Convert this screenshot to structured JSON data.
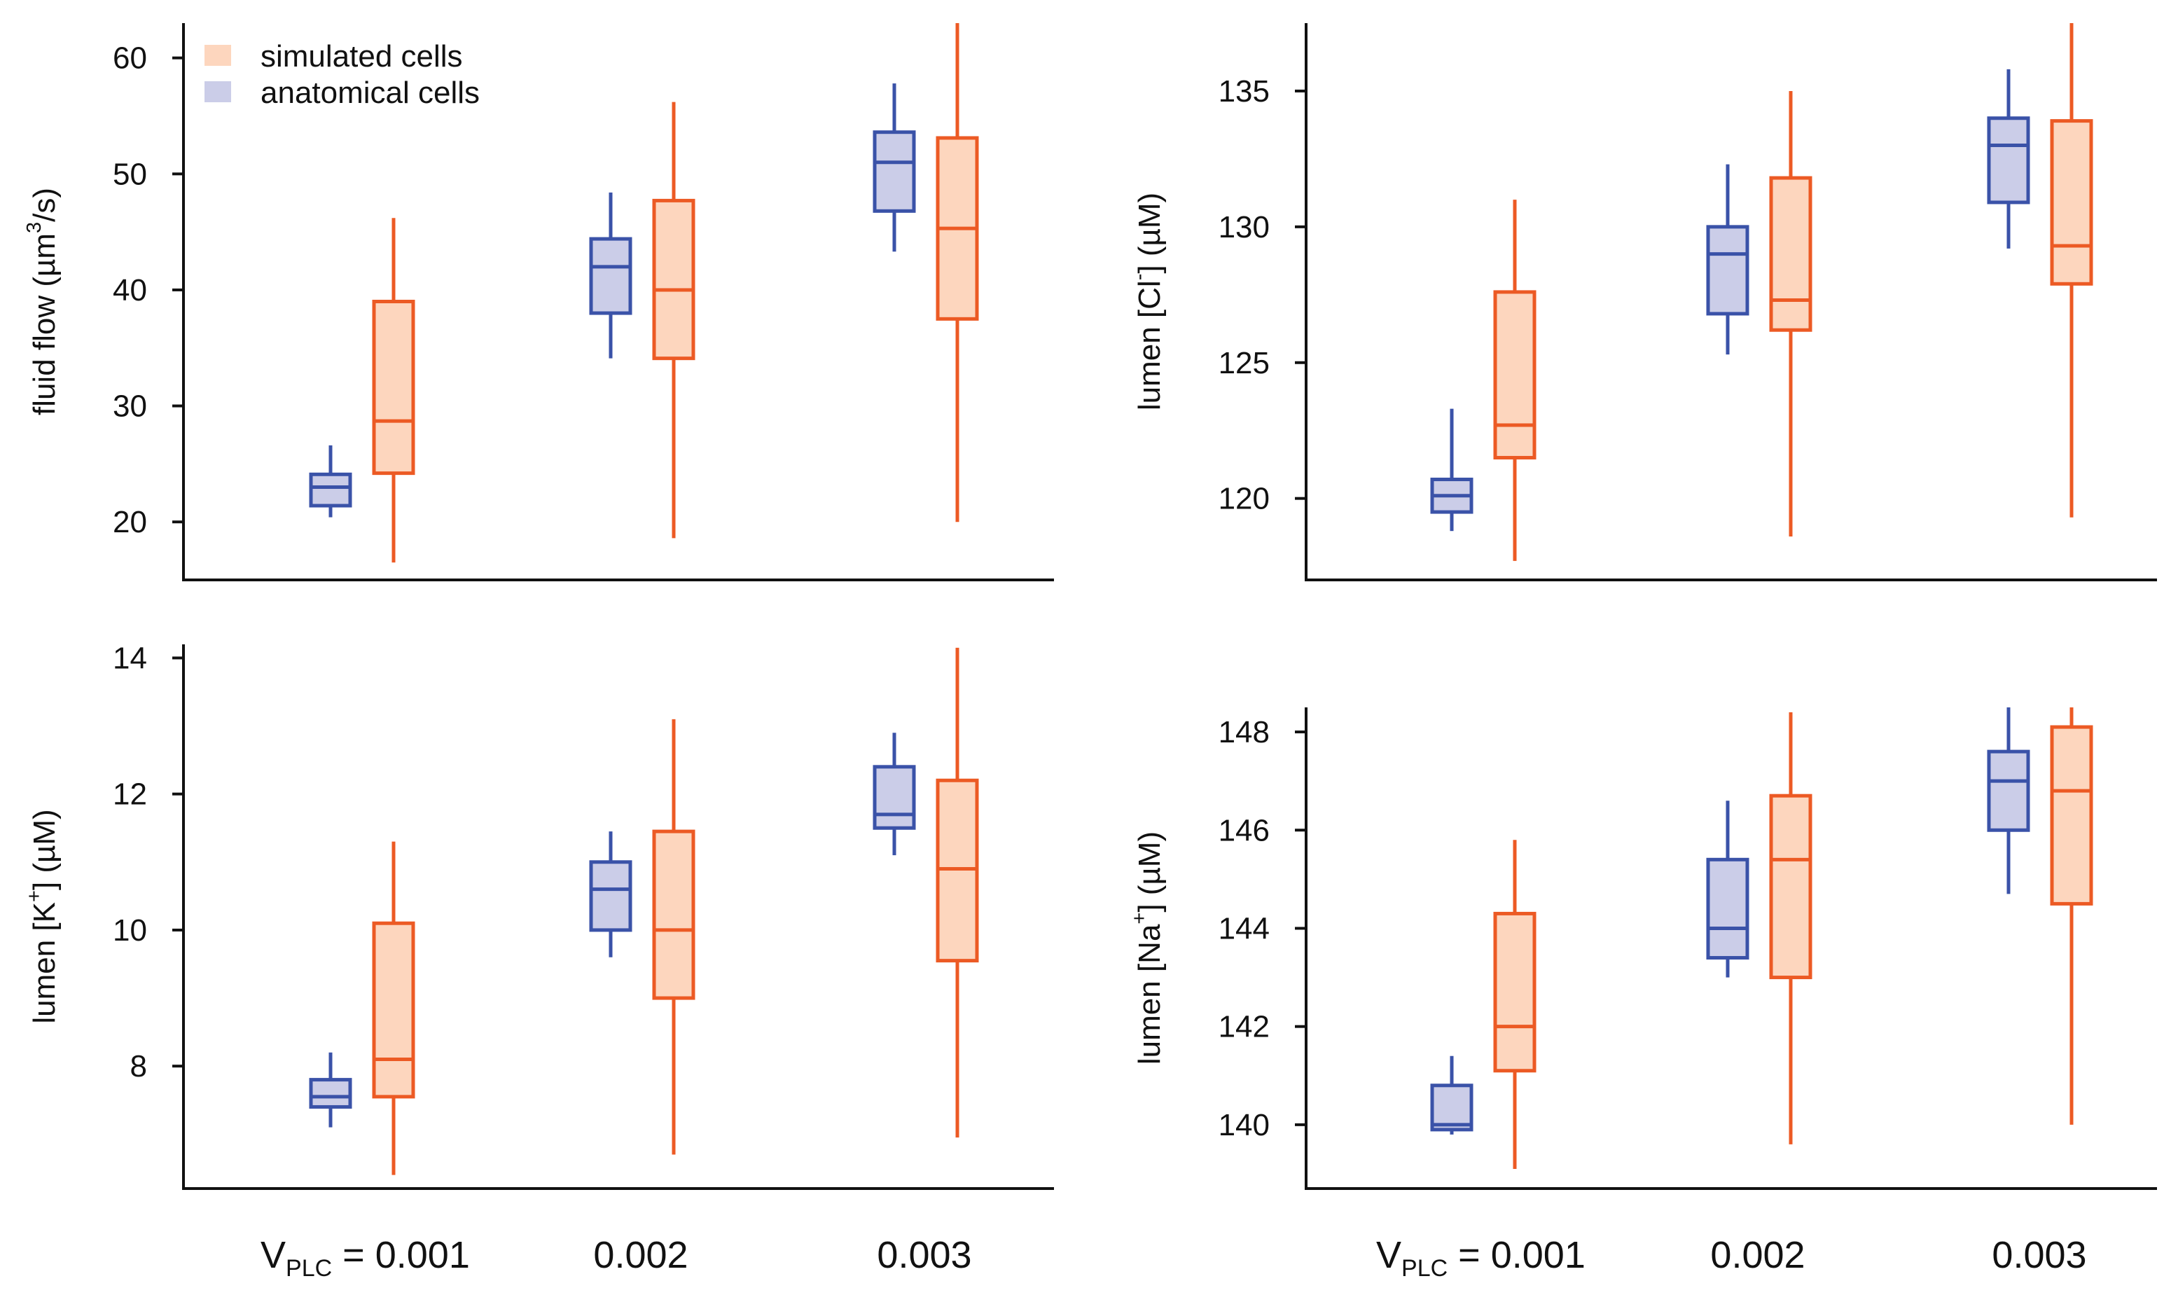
{
  "colors": {
    "anatomical_stroke": "#3a52a8",
    "anatomical_fill": "#cbcde8",
    "simulated_stroke": "#ec5a24",
    "simulated_fill": "#fdd6be",
    "axis": "#111111"
  },
  "legend": {
    "entries": [
      {
        "series": "simulated",
        "label": "simulated cells"
      },
      {
        "series": "anatomical",
        "label": "anatomical cells"
      }
    ],
    "placement": "top-left of first panel"
  },
  "x_axis": {
    "first_label": {
      "main": "V",
      "sub": "PLC",
      "rest": " = 0.001"
    },
    "labels": [
      "0.002",
      "0.003"
    ]
  },
  "chart_data": [
    {
      "type": "box",
      "name": "fluid-flow",
      "ylabel": {
        "parts": [
          "fluid flow (µm",
          "3",
          "/s)"
        ],
        "sup_index": 1
      },
      "ylim": [
        15,
        63
      ],
      "yticks": [
        20,
        30,
        40,
        50,
        60
      ],
      "categories": [
        "0.001",
        "0.002",
        "0.003"
      ],
      "series": [
        {
          "name": "anatomical cells",
          "key": "anatomical",
          "boxes": [
            {
              "min": 20.4,
              "q1": 21.4,
              "median": 23.0,
              "q3": 24.1,
              "max": 26.6
            },
            {
              "min": 34.1,
              "q1": 38.0,
              "median": 42.0,
              "q3": 44.4,
              "max": 48.4
            },
            {
              "min": 43.3,
              "q1": 46.8,
              "median": 51.0,
              "q3": 53.6,
              "max": 57.8
            }
          ]
        },
        {
          "name": "simulated cells",
          "key": "simulated",
          "boxes": [
            {
              "min": 16.5,
              "q1": 24.2,
              "median": 28.7,
              "q3": 39.0,
              "max": 46.2
            },
            {
              "min": 18.6,
              "q1": 34.1,
              "median": 40.0,
              "q3": 47.7,
              "max": 56.2
            },
            {
              "min": 20.0,
              "q1": 37.5,
              "median": 45.3,
              "q3": 53.1,
              "max": 63.0
            }
          ]
        }
      ]
    },
    {
      "type": "box",
      "name": "lumen-cl",
      "ylabel": {
        "parts": [
          "lumen [Cl",
          "-",
          "] (µM)"
        ],
        "sup_index": 1
      },
      "ylim": [
        117,
        137.5
      ],
      "yticks": [
        120,
        125,
        130,
        135
      ],
      "categories": [
        "0.001",
        "0.002",
        "0.003"
      ],
      "series": [
        {
          "name": "anatomical cells",
          "key": "anatomical",
          "boxes": [
            {
              "min": 118.8,
              "q1": 119.5,
              "median": 120.1,
              "q3": 120.7,
              "max": 123.3
            },
            {
              "min": 125.3,
              "q1": 126.8,
              "median": 129.0,
              "q3": 130.0,
              "max": 132.3
            },
            {
              "min": 129.2,
              "q1": 130.9,
              "median": 133.0,
              "q3": 134.0,
              "max": 135.8
            }
          ]
        },
        {
          "name": "simulated cells",
          "key": "simulated",
          "boxes": [
            {
              "min": 117.7,
              "q1": 121.5,
              "median": 122.7,
              "q3": 127.6,
              "max": 131.0
            },
            {
              "min": 118.6,
              "q1": 126.2,
              "median": 127.3,
              "q3": 131.8,
              "max": 135.0
            },
            {
              "min": 119.3,
              "q1": 127.9,
              "median": 129.3,
              "q3": 133.9,
              "max": 137.5
            }
          ]
        }
      ]
    },
    {
      "type": "box",
      "name": "lumen-k",
      "ylabel": {
        "parts": [
          "lumen [K",
          "+",
          "] (µM)"
        ],
        "sup_index": 1
      },
      "ylim": [
        6.2,
        14.2
      ],
      "yticks": [
        8,
        10,
        12,
        14
      ],
      "categories": [
        "0.001",
        "0.002",
        "0.003"
      ],
      "series": [
        {
          "name": "anatomical cells",
          "key": "anatomical",
          "boxes": [
            {
              "min": 7.1,
              "q1": 7.4,
              "median": 7.55,
              "q3": 7.8,
              "max": 8.2
            },
            {
              "min": 9.6,
              "q1": 10.0,
              "median": 10.6,
              "q3": 11.0,
              "max": 11.45
            },
            {
              "min": 11.1,
              "q1": 11.5,
              "median": 11.7,
              "q3": 12.4,
              "max": 12.9
            }
          ]
        },
        {
          "name": "simulated cells",
          "key": "simulated",
          "boxes": [
            {
              "min": 6.4,
              "q1": 7.55,
              "median": 8.1,
              "q3": 10.1,
              "max": 11.3
            },
            {
              "min": 6.7,
              "q1": 9.0,
              "median": 10.0,
              "q3": 11.45,
              "max": 13.1
            },
            {
              "min": 6.95,
              "q1": 9.55,
              "median": 10.9,
              "q3": 12.2,
              "max": 14.15
            }
          ]
        }
      ]
    },
    {
      "type": "box",
      "name": "lumen-na",
      "ylabel": {
        "parts": [
          "lumen [Na",
          "+",
          "] (µM)"
        ],
        "sup_index": 1
      },
      "ylim": [
        138.7,
        148.5
      ],
      "yticks": [
        140,
        142,
        144,
        146,
        148
      ],
      "categories": [
        "0.001",
        "0.002",
        "0.003"
      ],
      "series": [
        {
          "name": "anatomical cells",
          "key": "anatomical",
          "boxes": [
            {
              "min": 139.8,
              "q1": 139.9,
              "median": 140.0,
              "q3": 140.8,
              "max": 141.4
            },
            {
              "min": 143.0,
              "q1": 143.4,
              "median": 144.0,
              "q3": 145.4,
              "max": 146.6
            },
            {
              "min": 144.7,
              "q1": 146.0,
              "median": 147.0,
              "q3": 147.6,
              "max": 148.5
            }
          ]
        },
        {
          "name": "simulated cells",
          "key": "simulated",
          "boxes": [
            {
              "min": 139.1,
              "q1": 141.1,
              "median": 142.0,
              "q3": 144.3,
              "max": 145.8
            },
            {
              "min": 139.6,
              "q1": 143.0,
              "median": 145.4,
              "q3": 146.7,
              "max": 148.4
            },
            {
              "min": 140.0,
              "q1": 144.5,
              "median": 146.8,
              "q3": 148.1,
              "max": 148.5
            }
          ]
        }
      ]
    }
  ]
}
